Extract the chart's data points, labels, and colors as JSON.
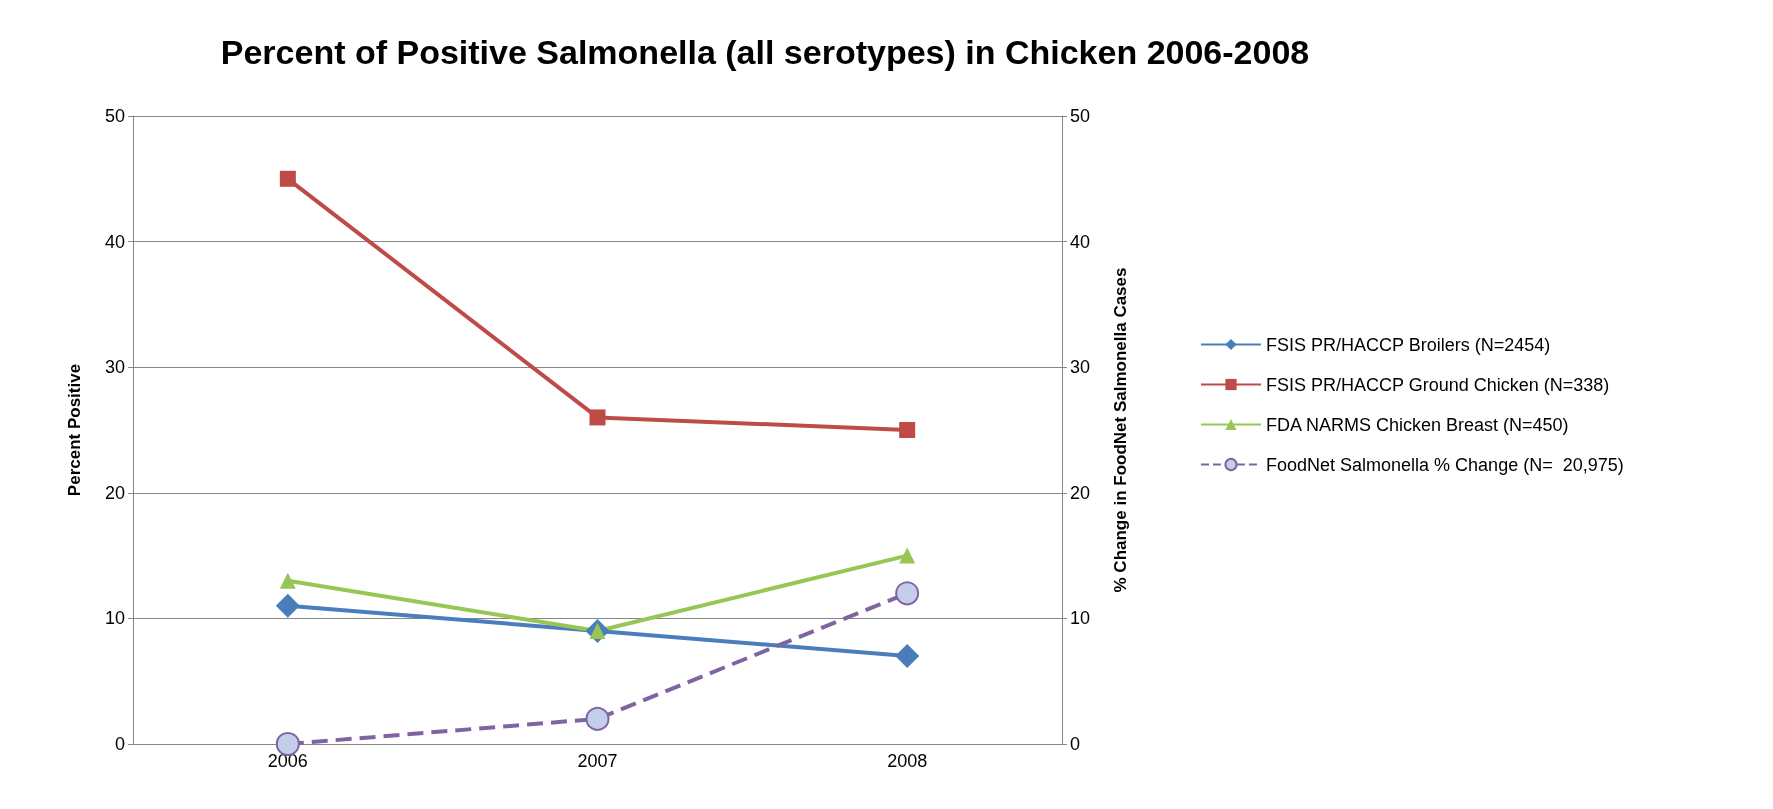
{
  "chart_data": {
    "type": "line",
    "title": "Percent of Positive Salmonella (all serotypes) in Chicken 2006-2008",
    "ylabel": "Percent Positive",
    "y2label": "% Change in FoodNet Salmonella Cases",
    "categories": [
      "2006",
      "2007",
      "2008"
    ],
    "series": [
      {
        "name": "FSIS PR/HACCP Broilers (N=2454)",
        "color": "#4a7ebb",
        "values": [
          11,
          9,
          7
        ],
        "marker": "diamond"
      },
      {
        "name": "FSIS PR/HACCP Ground Chicken (N=338)",
        "color": "#be4b48",
        "values": [
          45,
          26,
          25
        ],
        "marker": "square"
      },
      {
        "name": "FDA NARMS Chicken Breast (N=450)",
        "color": "#98c654",
        "values": [
          13,
          9,
          15
        ],
        "marker": "triangle"
      },
      {
        "name": "FoodNet Salmonella % Change (N=  20,975)",
        "color": "#8064a2",
        "values": [
          0,
          2,
          12
        ],
        "marker": "circle",
        "line_style": "dashed",
        "axis": "y2"
      }
    ],
    "ylim": [
      0,
      50
    ],
    "yticks": [
      0,
      10,
      20,
      30,
      40,
      50
    ],
    "y2lim": [
      0,
      50
    ],
    "y2ticks": [
      0,
      10,
      20,
      30,
      40,
      50
    ],
    "grid": "y",
    "legend": "right"
  }
}
